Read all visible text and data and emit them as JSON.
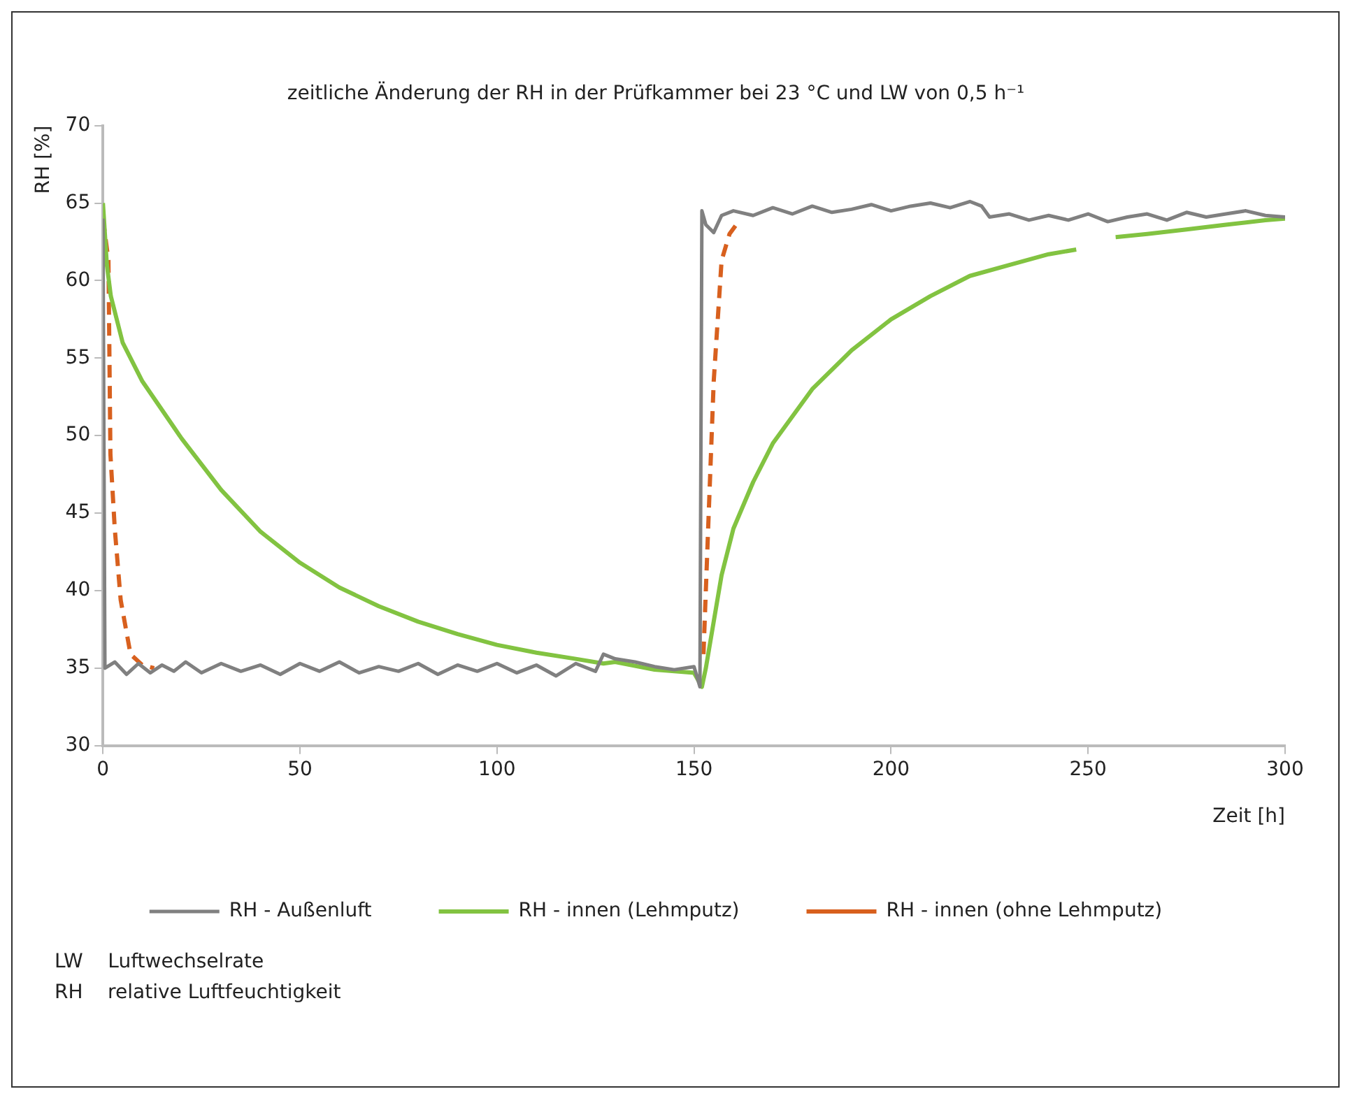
{
  "chart_data": {
    "type": "line",
    "title": "zeitliche Änderung der RH in der Prüfkammer bei 23 °C und LW von 0,5 h⁻¹",
    "xlabel": "Zeit [h]",
    "ylabel": "RH [%]",
    "xlim": [
      0,
      300
    ],
    "xticks": [
      0,
      50,
      100,
      150,
      200,
      250,
      300
    ],
    "ylim": [
      30,
      70
    ],
    "yticks": [
      30,
      35,
      40,
      45,
      50,
      55,
      60,
      65,
      70
    ],
    "grid": false,
    "legend": "bottom",
    "marker": "none",
    "series": [
      {
        "name": "RH - Außenluft",
        "color": "#808080",
        "line_style": "solid",
        "x": [
          0,
          0.5,
          3,
          6,
          9,
          12,
          15,
          18,
          21,
          25,
          30,
          35,
          40,
          45,
          50,
          55,
          60,
          65,
          70,
          75,
          80,
          85,
          90,
          95,
          100,
          105,
          110,
          115,
          120,
          125,
          127,
          130,
          135,
          140,
          145,
          150,
          151.5,
          152,
          153,
          155,
          157,
          160,
          165,
          170,
          175,
          180,
          185,
          190,
          195,
          200,
          205,
          210,
          215,
          220,
          223,
          225,
          230,
          235,
          240,
          245,
          250,
          255,
          260,
          265,
          270,
          275,
          280,
          285,
          290,
          295,
          300
        ],
        "values": [
          64,
          35,
          35.4,
          34.6,
          35.3,
          34.7,
          35.2,
          34.8,
          35.4,
          34.7,
          35.3,
          34.8,
          35.2,
          34.6,
          35.3,
          34.8,
          35.4,
          34.7,
          35.1,
          34.8,
          35.3,
          34.6,
          35.2,
          34.8,
          35.3,
          34.7,
          35.2,
          34.5,
          35.3,
          34.8,
          35.9,
          35.6,
          35.4,
          35.1,
          34.9,
          35.1,
          33.8,
          64.5,
          63.6,
          63.1,
          64.2,
          64.5,
          64.2,
          64.7,
          64.3,
          64.8,
          64.4,
          64.6,
          64.9,
          64.5,
          64.8,
          65,
          64.7,
          65.1,
          64.8,
          64.1,
          64.3,
          63.9,
          64.2,
          63.9,
          64.3,
          63.8,
          64.1,
          64.3,
          63.9,
          64.4,
          64.1,
          64.3,
          64.5,
          64.2,
          64.1
        ]
      },
      {
        "name": "RH - innen (Lehmputz)",
        "color": "#82c341",
        "line_style": "solid",
        "x": [
          0,
          1,
          2,
          5,
          10,
          20,
          30,
          40,
          50,
          60,
          70,
          80,
          90,
          100,
          110,
          120,
          127,
          130,
          140,
          150,
          152,
          153,
          155,
          157,
          160,
          165,
          170,
          180,
          190,
          200,
          210,
          220,
          230,
          240,
          247,
          250,
          257,
          265,
          275,
          285,
          295,
          300
        ],
        "values": [
          65,
          61,
          59,
          56,
          53.5,
          49.8,
          46.5,
          43.8,
          41.8,
          40.2,
          39,
          38,
          37.2,
          36.5,
          36,
          35.6,
          35.3,
          35.4,
          34.9,
          34.7,
          33.8,
          35,
          38,
          41,
          44,
          47,
          49.5,
          53,
          55.5,
          57.5,
          59,
          60.3,
          61,
          61.7,
          62,
          null,
          62.8,
          63,
          63.3,
          63.6,
          63.9,
          64
        ]
      },
      {
        "name": "RH - innen (ohne Lehmputz)",
        "color": "#d8601e",
        "line_style": "dashed",
        "x": [
          0,
          1.4,
          1.9,
          3,
          4.5,
          7,
          10,
          13,
          null,
          152.4,
          153.6,
          155,
          157,
          159,
          161
        ],
        "values": [
          64,
          61.3,
          48.8,
          44,
          39.4,
          35.9,
          35.2,
          35,
          null,
          35.9,
          44.1,
          53.5,
          61.3,
          63,
          63.7
        ]
      }
    ],
    "annotations": [
      "LW    Luftwechselrate",
      "RH    relative Luftfeuchtigkeit"
    ]
  }
}
